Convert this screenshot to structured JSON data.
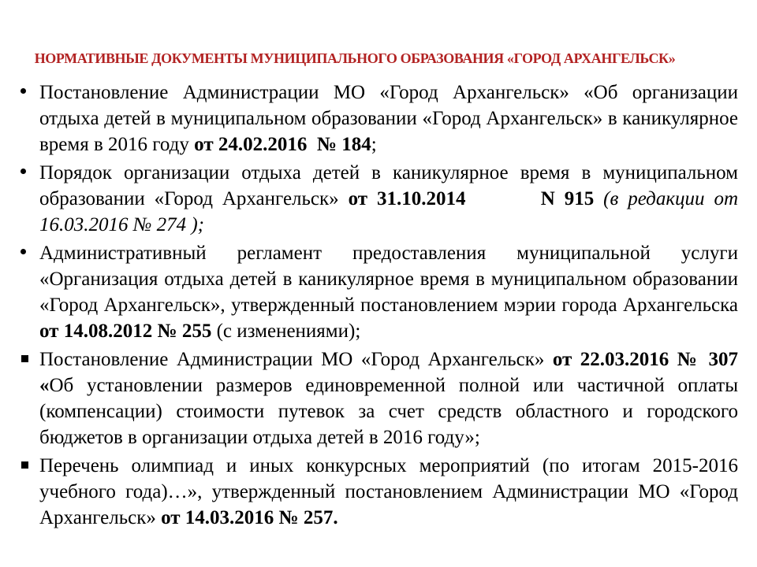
{
  "slide": {
    "title": "НОРМАТИВНЫЕ ДОКУМЕНТЫ МУНИЦИПАЛЬНОГО ОБРАЗОВАНИЯ «ГОРОД АРХАНГЕЛЬСК»",
    "title_color": "#b22222",
    "text_color": "#000000",
    "bullets": [
      {
        "marker": "disc",
        "runs": [
          {
            "text": "Постановление Администрации МО «Город Архангельск» «Об организации отдыха детей в муниципальном образовании «Город Архангельск» в каникулярное время в 2016 году "
          },
          {
            "text": "от 24.02.2016  № 184",
            "bold": true
          },
          {
            "text": ";"
          }
        ]
      },
      {
        "marker": "disc",
        "runs": [
          {
            "text": "Порядок организации отдыха детей в каникулярное время в муниципальном образовании «Город Архангельск» "
          },
          {
            "text": "от 31.10.2014        N 915 ",
            "bold": true
          },
          {
            "text": "(в редакции от 16.03.2016 № 274 );",
            "italic": true
          }
        ]
      },
      {
        "marker": "disc",
        "runs": [
          {
            "text": "Административный регламент предоставления муниципальной услуги «Организация отдыха детей в каникулярное время в муниципальном образовании «Город Архангельск», утвержденный постановлением мэрии города Архангельска "
          },
          {
            "text": "от 14.08.2012 № 255",
            "bold": true
          },
          {
            "text": " (с изменениями);"
          }
        ]
      },
      {
        "marker": "square",
        "runs": [
          {
            "text": "Постановление Администрации МО «Город Архангельск» "
          },
          {
            "text": "от 22.03.2016 № 307 «",
            "bold": true
          },
          {
            "text": "Об установлении размеров единовременной полной или частичной оплаты (компенсации) стоимости путевок за счет средств областного и городского бюджетов в организации отдыха детей в 2016 году»;"
          }
        ]
      },
      {
        "marker": "square",
        "runs": [
          {
            "text": "Перечень олимпиад и иных конкурсных мероприятий (по итогам 2015-2016 учебного года)…», утвержденный постановлением Администрации МО «Город Архангельск» "
          },
          {
            "text": "от 14.03.2016 № 257.",
            "bold": true
          }
        ]
      }
    ]
  }
}
